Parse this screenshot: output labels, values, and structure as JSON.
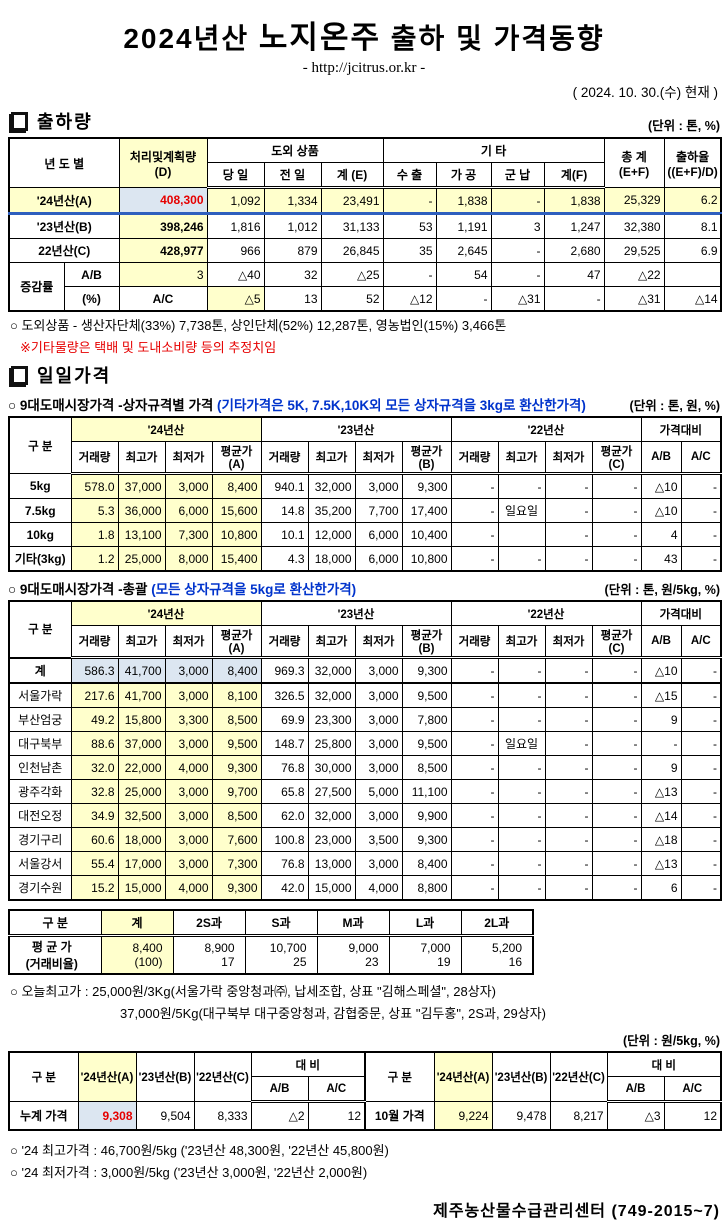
{
  "header": {
    "title_prefix": "2024년산",
    "title_product": "노지온주",
    "title_suffix": "출하 및 가격동향",
    "subtitle": "- http://jcitrus.or.kr -",
    "date_note": "( 2024.  10.  30.(수) 현재 )"
  },
  "colors": {
    "highlight_yellow": "#FFFFCC",
    "highlight_blue": "#DCE6F1",
    "accent_red": "#e60000",
    "accent_blue": "#0033cc",
    "row_underline_blue": "#2F5FBE"
  },
  "shipment": {
    "section_title": "출하량",
    "unit": "(단위 : 톤, %)",
    "table": {
      "cls": "dt t1",
      "widths": [
        55,
        55,
        88,
        57,
        57,
        62,
        53,
        55,
        53,
        60,
        60,
        57
      ],
      "rowcls": {
        "0": "rowA"
      },
      "header": [
        [
          {
            "t": "년 도 별",
            "rs": 2,
            "cs": 2
          },
          {
            "t": "처리및계획량\n(D)",
            "rs": 2,
            "c": "y"
          },
          {
            "t": "도외 상품",
            "cs": 3
          },
          {
            "t": "기            타",
            "cs": 4
          },
          {
            "t": "총  계\n(E+F)",
            "rs": 2
          },
          {
            "t": "출하율\n((E+F)/D)",
            "rs": 2
          }
        ],
        [
          "당 일",
          "전 일",
          "계 (E)",
          "수 출",
          "가 공",
          "군 납",
          "계(F)"
        ]
      ],
      "body": [
        [
          {
            "t": "'24년산(A)",
            "cs": 2,
            "c": "lbl b"
          },
          {
            "t": "408,300",
            "c": "bl red"
          },
          "1,092",
          "1,334",
          "23,491",
          "-",
          "1,838",
          "-",
          "1,838",
          "25,329",
          "6.2"
        ],
        [
          {
            "t": "'23년산(B)",
            "cs": 2,
            "c": "lbl b"
          },
          {
            "t": "398,246",
            "c": "y b"
          },
          "1,816",
          "1,012",
          "31,133",
          "53",
          "1,191",
          "3",
          "1,247",
          "32,380",
          "8.1"
        ],
        [
          {
            "t": "22년산(C)",
            "cs": 2,
            "c": "lbl b"
          },
          {
            "t": "428,977",
            "c": "y b"
          },
          "966",
          "879",
          "26,845",
          "35",
          "2,645",
          "-",
          "2,680",
          "29,525",
          "6.9"
        ],
        [
          {
            "t": "증감률",
            "rs": 2,
            "c": "lbl b"
          },
          {
            "t": "A/B",
            "c": "lbl b"
          },
          {
            "t": "3",
            "c": "y"
          },
          "△40",
          "32",
          "△25",
          "-",
          "54",
          "-",
          "47",
          "△22",
          ""
        ],
        [
          {
            "t": "(%)",
            "c": "lbl b"
          },
          {
            "t": "A/C",
            "c": "lbl b"
          },
          {
            "t": "△5",
            "c": "y"
          },
          "13",
          "52",
          "△12",
          "-",
          "△31",
          "-",
          "△31",
          "△14",
          ""
        ]
      ]
    },
    "note1": "○ 도외상품 - 생산자단체(33%) 7,738톤, 상인단체(52%) 12,287톤, 영농법인(15%) 3,466톤",
    "note2": "※기타물량은 택배 및 도내소비량 등의 추정치임"
  },
  "daily": {
    "section_title": "일일가격",
    "box": {
      "title": "○ 9대도매시장가격 -상자규격별 가격 ",
      "title_note": "(기타가격은 5K, 7.5K,10K외 모든 상자규격을 3kg로 환산한가격)",
      "unit": "(단위 : 톤, 원, %)",
      "table": {
        "cls": "dt t2",
        "widths": [
          62,
          47,
          47,
          47,
          49,
          47,
          47,
          47,
          49,
          47,
          47,
          47,
          49,
          40,
          40
        ],
        "header": [
          [
            {
              "t": "구   분",
              "rs": 2
            },
            {
              "t": "'24년산",
              "cs": 4,
              "c": "y"
            },
            {
              "t": "'23년산",
              "cs": 4
            },
            {
              "t": "'22년산",
              "cs": 4
            },
            {
              "t": "가격대비",
              "cs": 2
            }
          ],
          [
            "거래량",
            "최고가",
            "최저가",
            "평균가(A)",
            "거래량",
            "최고가",
            "최저가",
            "평균가(B)",
            "거래량",
            "최고가",
            "최저가",
            "평균가(C)",
            "A/B",
            "A/C"
          ]
        ],
        "body": [
          [
            {
              "t": "5kg",
              "c": "lbl b"
            },
            {
              "t": "578.0",
              "c": "y"
            },
            {
              "t": "37,000",
              "c": "y"
            },
            {
              "t": "3,000",
              "c": "y"
            },
            {
              "t": "8,400",
              "c": "y"
            },
            "940.1",
            "32,000",
            "3,000",
            "9,300",
            "-",
            "-",
            "-",
            "-",
            "△10",
            "-"
          ],
          [
            {
              "t": "7.5kg",
              "c": "lbl b"
            },
            {
              "t": "5.3",
              "c": "y"
            },
            {
              "t": "36,000",
              "c": "y"
            },
            {
              "t": "6,000",
              "c": "y"
            },
            {
              "t": "15,600",
              "c": "y"
            },
            "14.8",
            "35,200",
            "7,700",
            "17,400",
            "-",
            {
              "t": "일요일",
              "c": "lbl"
            },
            "-",
            "-",
            "△10",
            "-"
          ],
          [
            {
              "t": "10kg",
              "c": "lbl b"
            },
            {
              "t": "1.8",
              "c": "y"
            },
            {
              "t": "13,100",
              "c": "y"
            },
            {
              "t": "7,300",
              "c": "y"
            },
            {
              "t": "10,800",
              "c": "y"
            },
            "10.1",
            "12,000",
            "6,000",
            "10,400",
            "-",
            "",
            "-",
            "-",
            "4",
            "-"
          ],
          [
            {
              "t": "기타(3kg)",
              "c": "lbl b"
            },
            {
              "t": "1.2",
              "c": "y"
            },
            {
              "t": "25,000",
              "c": "y"
            },
            {
              "t": "8,000",
              "c": "y"
            },
            {
              "t": "15,400",
              "c": "y"
            },
            "4.3",
            "18,000",
            "6,000",
            "10,800",
            "-",
            "-",
            "-",
            "-",
            "43",
            "-"
          ]
        ]
      }
    },
    "overall": {
      "title": "○ 9대도매시장가격 -총괄 ",
      "title_note": "(모든 상자규격을 5kg로 환산한가격)",
      "unit": "(단위 : 톤, 원/5kg, %)",
      "table": {
        "cls": "dt t3",
        "widths": [
          62,
          47,
          47,
          47,
          49,
          47,
          47,
          47,
          49,
          47,
          47,
          47,
          49,
          40,
          40
        ],
        "rowcls": {
          "0": "thick"
        },
        "header": [
          [
            {
              "t": "구   분",
              "rs": 2
            },
            {
              "t": "'24년산",
              "cs": 4,
              "c": "y"
            },
            {
              "t": "'23년산",
              "cs": 4
            },
            {
              "t": "'22년산",
              "cs": 4
            },
            {
              "t": "가격대비",
              "cs": 2
            }
          ],
          [
            "거래량",
            "최고가",
            "최저가",
            "평균가(A)",
            "거래량",
            "최고가",
            "최저가",
            "평균가(B)",
            "거래량",
            "최고가",
            "최저가",
            "평균가(C)",
            "A/B",
            "A/C"
          ]
        ],
        "body": [
          [
            {
              "t": "계",
              "c": "lbl b"
            },
            {
              "t": "586.3",
              "c": "bl"
            },
            {
              "t": "41,700",
              "c": "bl"
            },
            {
              "t": "3,000",
              "c": "bl"
            },
            {
              "t": "8,400",
              "c": "bl"
            },
            "969.3",
            "32,000",
            "3,000",
            "9,300",
            "-",
            "-",
            "-",
            "-",
            "△10",
            "-"
          ],
          [
            {
              "t": "서울가락",
              "c": "lbl"
            },
            {
              "t": "217.6",
              "c": "y"
            },
            {
              "t": "41,700",
              "c": "y"
            },
            {
              "t": "3,000",
              "c": "y"
            },
            {
              "t": "8,100",
              "c": "y"
            },
            "326.5",
            "32,000",
            "3,000",
            "9,500",
            "-",
            "-",
            "-",
            "-",
            "△15",
            "-"
          ],
          [
            {
              "t": "부산엄궁",
              "c": "lbl"
            },
            {
              "t": "49.2",
              "c": "y"
            },
            {
              "t": "15,800",
              "c": "y"
            },
            {
              "t": "3,300",
              "c": "y"
            },
            {
              "t": "8,500",
              "c": "y"
            },
            "69.9",
            "23,300",
            "3,000",
            "7,800",
            "-",
            "-",
            "-",
            "-",
            "9",
            "-"
          ],
          [
            {
              "t": "대구북부",
              "c": "lbl"
            },
            {
              "t": "88.6",
              "c": "y"
            },
            {
              "t": "37,000",
              "c": "y"
            },
            {
              "t": "3,000",
              "c": "y"
            },
            {
              "t": "9,500",
              "c": "y"
            },
            "148.7",
            "25,800",
            "3,000",
            "9,500",
            "-",
            {
              "t": "일요일",
              "c": "lbl"
            },
            "-",
            "-",
            "-",
            "-"
          ],
          [
            {
              "t": "인천남촌",
              "c": "lbl"
            },
            {
              "t": "32.0",
              "c": "y"
            },
            {
              "t": "22,000",
              "c": "y"
            },
            {
              "t": "4,000",
              "c": "y"
            },
            {
              "t": "9,300",
              "c": "y"
            },
            "76.8",
            "30,000",
            "3,000",
            "8,500",
            "-",
            "-",
            "-",
            "-",
            "9",
            "-"
          ],
          [
            {
              "t": "광주각화",
              "c": "lbl"
            },
            {
              "t": "32.8",
              "c": "y"
            },
            {
              "t": "25,000",
              "c": "y"
            },
            {
              "t": "3,000",
              "c": "y"
            },
            {
              "t": "9,700",
              "c": "y"
            },
            "65.8",
            "27,500",
            "5,000",
            "11,100",
            "-",
            "-",
            "-",
            "-",
            "△13",
            "-"
          ],
          [
            {
              "t": "대전오정",
              "c": "lbl"
            },
            {
              "t": "34.9",
              "c": "y"
            },
            {
              "t": "32,500",
              "c": "y"
            },
            {
              "t": "3,000",
              "c": "y"
            },
            {
              "t": "8,500",
              "c": "y"
            },
            "62.0",
            "32,000",
            "3,000",
            "9,900",
            "-",
            "-",
            "-",
            "-",
            "△14",
            "-"
          ],
          [
            {
              "t": "경기구리",
              "c": "lbl"
            },
            {
              "t": "60.6",
              "c": "y"
            },
            {
              "t": "18,000",
              "c": "y"
            },
            {
              "t": "3,000",
              "c": "y"
            },
            {
              "t": "7,600",
              "c": "y"
            },
            "100.8",
            "23,000",
            "3,500",
            "9,300",
            "-",
            "-",
            "-",
            "-",
            "△18",
            "-"
          ],
          [
            {
              "t": "서울강서",
              "c": "lbl"
            },
            {
              "t": "55.4",
              "c": "y"
            },
            {
              "t": "17,000",
              "c": "y"
            },
            {
              "t": "3,000",
              "c": "y"
            },
            {
              "t": "7,300",
              "c": "y"
            },
            "76.8",
            "13,000",
            "3,000",
            "8,400",
            "-",
            "-",
            "-",
            "-",
            "△13",
            "-"
          ],
          [
            {
              "t": "경기수원",
              "c": "lbl"
            },
            {
              "t": "15.2",
              "c": "y"
            },
            {
              "t": "15,000",
              "c": "y"
            },
            {
              "t": "4,000",
              "c": "y"
            },
            {
              "t": "9,300",
              "c": "y"
            },
            "42.0",
            "15,000",
            "4,000",
            "8,800",
            "-",
            "-",
            "-",
            "-",
            "6",
            "-"
          ]
        ]
      }
    },
    "size": {
      "table": {
        "cls": "dt t4",
        "widths": [
          92,
          72,
          72,
          72,
          72,
          72,
          72
        ],
        "header": [
          [
            {
              "t": "구   분"
            },
            {
              "t": "계",
              "c": "y"
            },
            "2S과",
            "S과",
            "M과",
            "L과",
            "2L과"
          ]
        ],
        "body": [
          [
            {
              "t": "평 균 가\n(거래비율)",
              "c": "lbl b"
            },
            {
              "t": "8,400\n(100)",
              "c": "y"
            },
            "8,900\n17",
            "10,700\n25",
            "9,000\n23",
            "7,000\n19",
            "5,200\n16"
          ]
        ]
      }
    },
    "today_high_1": "○ 오늘최고가 : 25,000원/3Kg(서울가락 중앙청과㈜, 납세조합, 상표 \"김해스페셜\", 28상자)",
    "today_high_2": "37,000원/5Kg(대구북부 대구중앙청과, 감협중문, 상표 \"김두홍\", 2S과, 29상자)"
  },
  "cumulative": {
    "unit": "(단위 : 원/5kg, %)",
    "table": {
      "cls": "dt t5",
      "widths": [
        69,
        58,
        58,
        57,
        57,
        57,
        69,
        58,
        58,
        57,
        57,
        57
      ],
      "header": [
        [
          {
            "t": "구      분",
            "rs": 2
          },
          {
            "t": "'24년산(A)",
            "rs": 2,
            "c": "y"
          },
          {
            "t": "'23년산(B)",
            "rs": 2
          },
          {
            "t": "'22년산(C)",
            "rs": 2
          },
          {
            "t": "대      비",
            "cs": 2
          },
          {
            "t": "구      분",
            "rs": 2,
            "c": "divl"
          },
          {
            "t": "'24년산(A)",
            "rs": 2,
            "c": "y"
          },
          {
            "t": "'23년산(B)",
            "rs": 2
          },
          {
            "t": "'22년산(C)",
            "rs": 2
          },
          {
            "t": "대      비",
            "cs": 2
          }
        ],
        [
          "A/B",
          "A/C",
          "A/B",
          "A/C"
        ]
      ],
      "body": [
        [
          {
            "t": "누계 가격",
            "c": "lbl b"
          },
          {
            "t": "9,308",
            "c": "bl red"
          },
          "9,504",
          "8,333",
          "△2",
          "12",
          {
            "t": "10월 가격",
            "c": "lbl b divl"
          },
          {
            "t": "9,224",
            "c": "y"
          },
          "9,478",
          "8,217",
          "△3",
          "12"
        ]
      ]
    },
    "note_high": "○ '24 최고가격 : 46,700원/5kg ('23년산 48,300원, '22년산 45,800원)",
    "note_low": "○ '24 최저가격 :  3,000원/5kg ('23년산 3,000원, '22년산 2,000원)"
  },
  "footer": {
    "center_name": "제주농산물수급관리센터 (749-2015~7)"
  }
}
